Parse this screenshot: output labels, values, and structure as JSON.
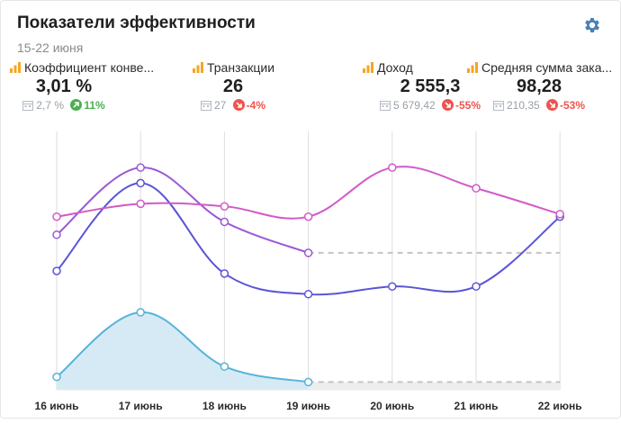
{
  "header": {
    "title": "Показатели эффективности",
    "date_range": "15-22 июня"
  },
  "icons": {
    "settings": "gear-icon",
    "metric_source": "bar-chart-icon",
    "period": "calendar-icon",
    "trend_up": "arrow-up-icon",
    "trend_down": "arrow-down-icon"
  },
  "colors": {
    "accent_gear": "#4a7fb5",
    "metric_icon": "#f5a623",
    "positive": "#4caf50",
    "negative": "#ef5350",
    "series_conversion": "#9b59d6",
    "series_transactions": "#5b55d6",
    "series_revenue": "#56b3d9",
    "series_avg_order": "#d25ac8"
  },
  "kpis": [
    {
      "label": "Коэффициент конве...",
      "value": "3,01 %",
      "previous": "2,7 %",
      "change": "11%",
      "direction": "up"
    },
    {
      "label": "Транзакции",
      "value": "26",
      "previous": "27",
      "change": "-4%",
      "direction": "down"
    },
    {
      "label": "Доход",
      "value": "2 555,3",
      "previous": "5 679,42",
      "change": "-55%",
      "direction": "down"
    },
    {
      "label": "Средняя сумма зака...",
      "value": "98,28",
      "previous": "210,35",
      "change": "-53%",
      "direction": "down"
    }
  ],
  "chart_data": {
    "type": "line",
    "x": [
      "16 июнь",
      "17 июнь",
      "18 июнь",
      "19 июнь",
      "20 июнь",
      "21 июнь",
      "22 июнь"
    ],
    "grid": "vertical",
    "legend": "none",
    "note": "Values are relative (no y-axis printed); 0-100 scale estimated from line heights. Dashed segments continue last known value.",
    "series": [
      {
        "values": [
          60,
          86,
          65,
          53,
          null,
          null,
          null
        ],
        "dashed_to_end": 53
      },
      {
        "values": [
          46,
          80,
          45,
          37,
          40,
          40,
          67
        ]
      },
      {
        "values": [
          5,
          30,
          9,
          3,
          null,
          null,
          null
        ],
        "dashed_to_end": 3,
        "filled": true
      },
      {
        "values": [
          67,
          72,
          71,
          67,
          86,
          78,
          68
        ]
      }
    ],
    "ylim": [
      0,
      100
    ]
  }
}
